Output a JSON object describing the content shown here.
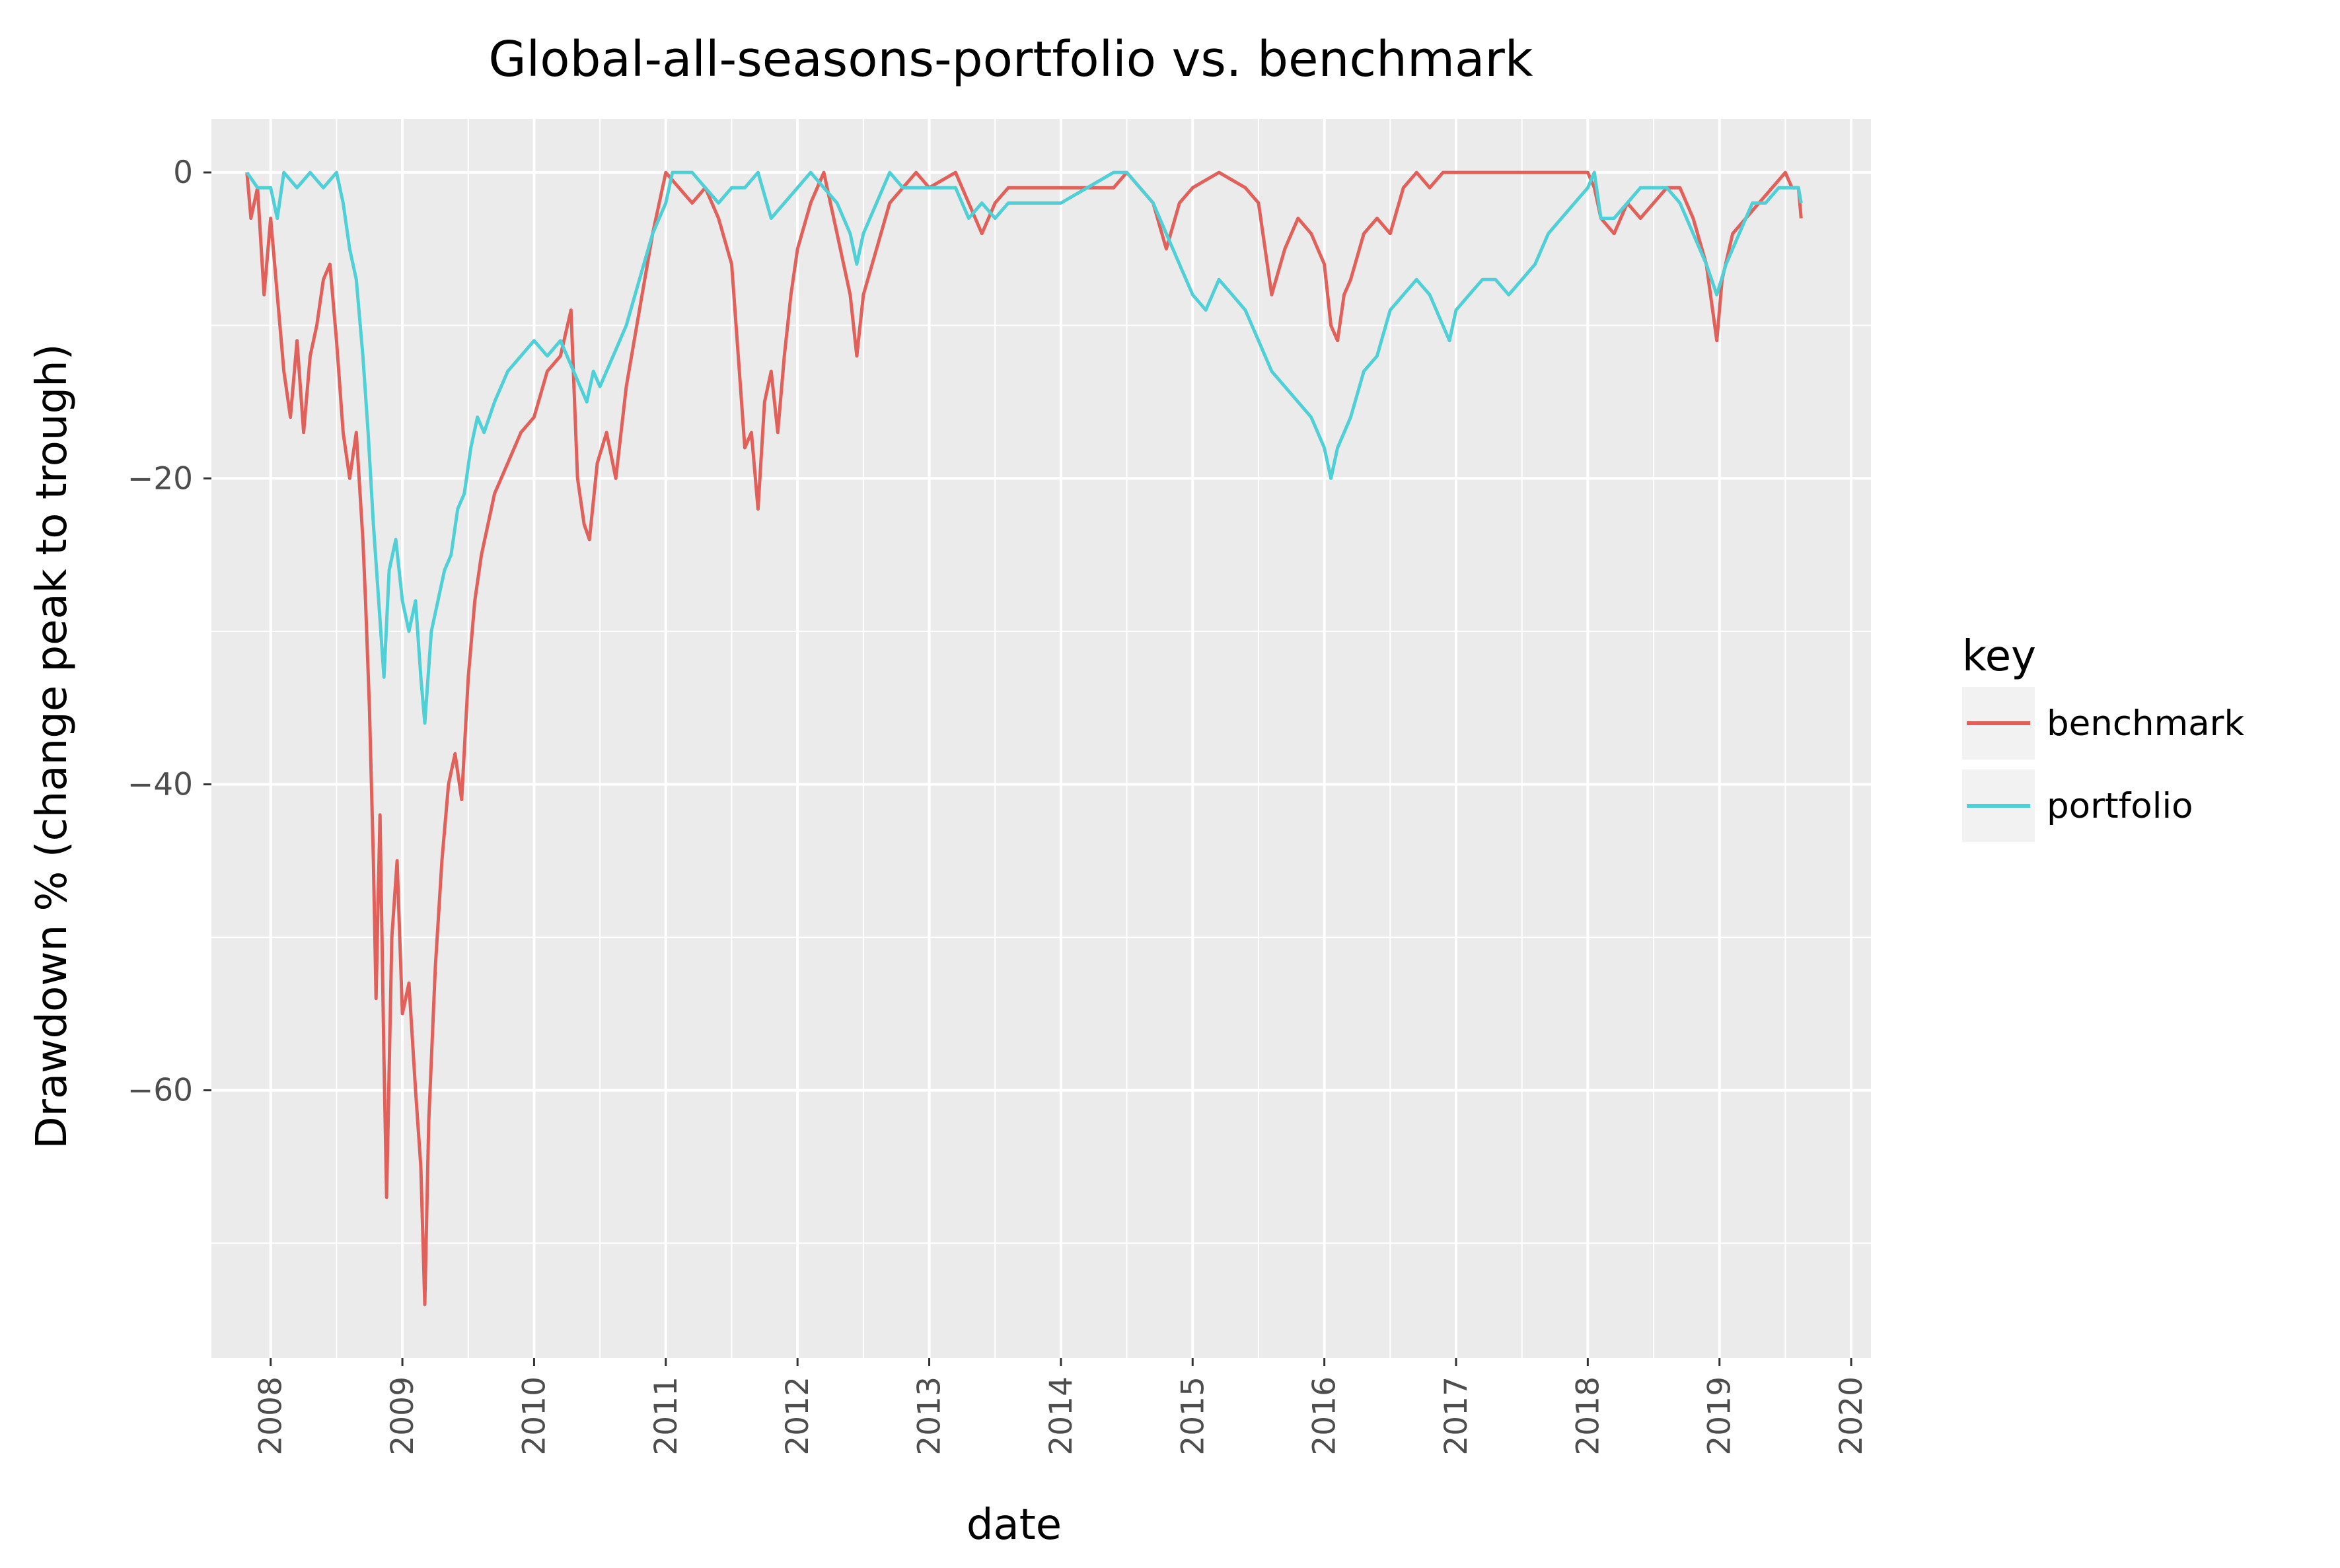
{
  "chart_data": {
    "type": "line",
    "title": "Global-all-seasons-portfolio vs. benchmark",
    "xlabel": "date",
    "ylabel": "Drawdown % (change peak to trough)",
    "x_ticks": [
      "2008",
      "2009",
      "2010",
      "2011",
      "2012",
      "2013",
      "2014",
      "2015",
      "2016",
      "2017",
      "2018",
      "2019",
      "2020"
    ],
    "y_ticks": [
      "0",
      "−20",
      "−40",
      "−60"
    ],
    "xlim": [
      2007.55,
      2020.15
    ],
    "ylim": [
      -77.5,
      3.5
    ],
    "grid": true,
    "legend": {
      "title": "key",
      "position": "right"
    },
    "series": [
      {
        "name": "benchmark",
        "color": "#E1615A",
        "points": [
          [
            2007.82,
            0
          ],
          [
            2007.85,
            -3
          ],
          [
            2007.9,
            -1
          ],
          [
            2007.95,
            -8
          ],
          [
            2008.0,
            -3
          ],
          [
            2008.05,
            -8
          ],
          [
            2008.1,
            -13
          ],
          [
            2008.15,
            -16
          ],
          [
            2008.2,
            -11
          ],
          [
            2008.25,
            -17
          ],
          [
            2008.3,
            -12
          ],
          [
            2008.35,
            -10
          ],
          [
            2008.4,
            -7
          ],
          [
            2008.45,
            -6
          ],
          [
            2008.5,
            -11
          ],
          [
            2008.55,
            -17
          ],
          [
            2008.6,
            -20
          ],
          [
            2008.65,
            -17
          ],
          [
            2008.7,
            -24
          ],
          [
            2008.72,
            -28
          ],
          [
            2008.75,
            -35
          ],
          [
            2008.78,
            -45
          ],
          [
            2008.8,
            -54
          ],
          [
            2008.83,
            -42
          ],
          [
            2008.86,
            -58
          ],
          [
            2008.88,
            -67
          ],
          [
            2008.92,
            -50
          ],
          [
            2008.96,
            -45
          ],
          [
            2009.0,
            -55
          ],
          [
            2009.05,
            -53
          ],
          [
            2009.1,
            -60
          ],
          [
            2009.14,
            -65
          ],
          [
            2009.17,
            -74
          ],
          [
            2009.2,
            -62
          ],
          [
            2009.25,
            -52
          ],
          [
            2009.3,
            -45
          ],
          [
            2009.35,
            -40
          ],
          [
            2009.4,
            -38
          ],
          [
            2009.45,
            -41
          ],
          [
            2009.5,
            -33
          ],
          [
            2009.55,
            -28
          ],
          [
            2009.6,
            -25
          ],
          [
            2009.7,
            -21
          ],
          [
            2009.8,
            -19
          ],
          [
            2009.9,
            -17
          ],
          [
            2010.0,
            -16
          ],
          [
            2010.1,
            -13
          ],
          [
            2010.2,
            -12
          ],
          [
            2010.28,
            -9
          ],
          [
            2010.33,
            -20
          ],
          [
            2010.38,
            -23
          ],
          [
            2010.42,
            -24
          ],
          [
            2010.48,
            -19
          ],
          [
            2010.55,
            -17
          ],
          [
            2010.62,
            -20
          ],
          [
            2010.7,
            -14
          ],
          [
            2010.8,
            -9
          ],
          [
            2010.9,
            -4
          ],
          [
            2011.0,
            0
          ],
          [
            2011.1,
            -1
          ],
          [
            2011.2,
            -2
          ],
          [
            2011.3,
            -1
          ],
          [
            2011.4,
            -3
          ],
          [
            2011.5,
            -6
          ],
          [
            2011.55,
            -12
          ],
          [
            2011.6,
            -18
          ],
          [
            2011.65,
            -17
          ],
          [
            2011.7,
            -22
          ],
          [
            2011.75,
            -15
          ],
          [
            2011.8,
            -13
          ],
          [
            2011.85,
            -17
          ],
          [
            2011.9,
            -12
          ],
          [
            2011.95,
            -8
          ],
          [
            2012.0,
            -5
          ],
          [
            2012.1,
            -2
          ],
          [
            2012.2,
            0
          ],
          [
            2012.3,
            -4
          ],
          [
            2012.4,
            -8
          ],
          [
            2012.45,
            -12
          ],
          [
            2012.5,
            -8
          ],
          [
            2012.6,
            -5
          ],
          [
            2012.7,
            -2
          ],
          [
            2012.8,
            -1
          ],
          [
            2012.9,
            0
          ],
          [
            2013.0,
            -1
          ],
          [
            2013.2,
            0
          ],
          [
            2013.3,
            -2
          ],
          [
            2013.4,
            -4
          ],
          [
            2013.5,
            -2
          ],
          [
            2013.6,
            -1
          ],
          [
            2013.8,
            -1
          ],
          [
            2014.0,
            -1
          ],
          [
            2014.2,
            -1
          ],
          [
            2014.4,
            -1
          ],
          [
            2014.5,
            0
          ],
          [
            2014.7,
            -2
          ],
          [
            2014.8,
            -5
          ],
          [
            2014.9,
            -2
          ],
          [
            2015.0,
            -1
          ],
          [
            2015.2,
            0
          ],
          [
            2015.4,
            -1
          ],
          [
            2015.5,
            -2
          ],
          [
            2015.6,
            -8
          ],
          [
            2015.7,
            -5
          ],
          [
            2015.8,
            -3
          ],
          [
            2015.9,
            -4
          ],
          [
            2016.0,
            -6
          ],
          [
            2016.05,
            -10
          ],
          [
            2016.1,
            -11
          ],
          [
            2016.15,
            -8
          ],
          [
            2016.2,
            -7
          ],
          [
            2016.3,
            -4
          ],
          [
            2016.4,
            -3
          ],
          [
            2016.5,
            -4
          ],
          [
            2016.6,
            -1
          ],
          [
            2016.7,
            0
          ],
          [
            2016.8,
            -1
          ],
          [
            2016.9,
            0
          ],
          [
            2017.0,
            0
          ],
          [
            2017.2,
            0
          ],
          [
            2017.4,
            0
          ],
          [
            2017.6,
            0
          ],
          [
            2017.8,
            0
          ],
          [
            2018.0,
            0
          ],
          [
            2018.05,
            -1
          ],
          [
            2018.1,
            -3
          ],
          [
            2018.2,
            -4
          ],
          [
            2018.3,
            -2
          ],
          [
            2018.4,
            -3
          ],
          [
            2018.5,
            -2
          ],
          [
            2018.6,
            -1
          ],
          [
            2018.7,
            -1
          ],
          [
            2018.8,
            -3
          ],
          [
            2018.9,
            -6
          ],
          [
            2018.98,
            -11
          ],
          [
            2019.02,
            -7
          ],
          [
            2019.1,
            -4
          ],
          [
            2019.2,
            -3
          ],
          [
            2019.3,
            -2
          ],
          [
            2019.4,
            -1
          ],
          [
            2019.5,
            0
          ],
          [
            2019.55,
            -1
          ],
          [
            2019.6,
            -1
          ],
          [
            2019.62,
            -3
          ]
        ]
      },
      {
        "name": "portfolio",
        "color": "#4FD0D6",
        "points": [
          [
            2007.82,
            0
          ],
          [
            2007.9,
            -1
          ],
          [
            2008.0,
            -1
          ],
          [
            2008.05,
            -3
          ],
          [
            2008.1,
            0
          ],
          [
            2008.2,
            -1
          ],
          [
            2008.3,
            0
          ],
          [
            2008.4,
            -1
          ],
          [
            2008.5,
            0
          ],
          [
            2008.55,
            -2
          ],
          [
            2008.6,
            -5
          ],
          [
            2008.65,
            -7
          ],
          [
            2008.7,
            -12
          ],
          [
            2008.74,
            -17
          ],
          [
            2008.78,
            -23
          ],
          [
            2008.82,
            -28
          ],
          [
            2008.86,
            -33
          ],
          [
            2008.9,
            -26
          ],
          [
            2008.95,
            -24
          ],
          [
            2009.0,
            -28
          ],
          [
            2009.05,
            -30
          ],
          [
            2009.1,
            -28
          ],
          [
            2009.14,
            -33
          ],
          [
            2009.17,
            -36
          ],
          [
            2009.22,
            -30
          ],
          [
            2009.27,
            -28
          ],
          [
            2009.32,
            -26
          ],
          [
            2009.37,
            -25
          ],
          [
            2009.42,
            -22
          ],
          [
            2009.47,
            -21
          ],
          [
            2009.52,
            -18
          ],
          [
            2009.57,
            -16
          ],
          [
            2009.62,
            -17
          ],
          [
            2009.7,
            -15
          ],
          [
            2009.8,
            -13
          ],
          [
            2009.9,
            -12
          ],
          [
            2010.0,
            -11
          ],
          [
            2010.1,
            -12
          ],
          [
            2010.2,
            -11
          ],
          [
            2010.3,
            -13
          ],
          [
            2010.35,
            -14
          ],
          [
            2010.4,
            -15
          ],
          [
            2010.45,
            -13
          ],
          [
            2010.5,
            -14
          ],
          [
            2010.6,
            -12
          ],
          [
            2010.7,
            -10
          ],
          [
            2010.8,
            -7
          ],
          [
            2010.9,
            -4
          ],
          [
            2011.0,
            -2
          ],
          [
            2011.05,
            0
          ],
          [
            2011.2,
            0
          ],
          [
            2011.3,
            -1
          ],
          [
            2011.4,
            -2
          ],
          [
            2011.5,
            -1
          ],
          [
            2011.6,
            -1
          ],
          [
            2011.7,
            0
          ],
          [
            2011.8,
            -3
          ],
          [
            2011.9,
            -2
          ],
          [
            2012.0,
            -1
          ],
          [
            2012.1,
            0
          ],
          [
            2012.2,
            -1
          ],
          [
            2012.3,
            -2
          ],
          [
            2012.4,
            -4
          ],
          [
            2012.45,
            -6
          ],
          [
            2012.5,
            -4
          ],
          [
            2012.6,
            -2
          ],
          [
            2012.7,
            0
          ],
          [
            2012.8,
            -1
          ],
          [
            2013.0,
            -1
          ],
          [
            2013.2,
            -1
          ],
          [
            2013.3,
            -3
          ],
          [
            2013.4,
            -2
          ],
          [
            2013.5,
            -3
          ],
          [
            2013.6,
            -2
          ],
          [
            2013.8,
            -2
          ],
          [
            2014.0,
            -2
          ],
          [
            2014.2,
            -1
          ],
          [
            2014.4,
            0
          ],
          [
            2014.5,
            0
          ],
          [
            2014.6,
            -1
          ],
          [
            2014.7,
            -2
          ],
          [
            2014.8,
            -4
          ],
          [
            2014.9,
            -6
          ],
          [
            2015.0,
            -8
          ],
          [
            2015.1,
            -9
          ],
          [
            2015.2,
            -7
          ],
          [
            2015.3,
            -8
          ],
          [
            2015.4,
            -9
          ],
          [
            2015.5,
            -11
          ],
          [
            2015.6,
            -13
          ],
          [
            2015.7,
            -14
          ],
          [
            2015.8,
            -15
          ],
          [
            2015.9,
            -16
          ],
          [
            2016.0,
            -18
          ],
          [
            2016.05,
            -20
          ],
          [
            2016.1,
            -18
          ],
          [
            2016.2,
            -16
          ],
          [
            2016.3,
            -13
          ],
          [
            2016.4,
            -12
          ],
          [
            2016.5,
            -9
          ],
          [
            2016.6,
            -8
          ],
          [
            2016.7,
            -7
          ],
          [
            2016.8,
            -8
          ],
          [
            2016.9,
            -10
          ],
          [
            2016.95,
            -11
          ],
          [
            2017.0,
            -9
          ],
          [
            2017.1,
            -8
          ],
          [
            2017.2,
            -7
          ],
          [
            2017.3,
            -7
          ],
          [
            2017.4,
            -8
          ],
          [
            2017.5,
            -7
          ],
          [
            2017.6,
            -6
          ],
          [
            2017.7,
            -4
          ],
          [
            2017.8,
            -3
          ],
          [
            2017.9,
            -2
          ],
          [
            2018.0,
            -1
          ],
          [
            2018.05,
            0
          ],
          [
            2018.1,
            -3
          ],
          [
            2018.2,
            -3
          ],
          [
            2018.3,
            -2
          ],
          [
            2018.4,
            -1
          ],
          [
            2018.5,
            -1
          ],
          [
            2018.6,
            -1
          ],
          [
            2018.7,
            -2
          ],
          [
            2018.8,
            -4
          ],
          [
            2018.9,
            -6
          ],
          [
            2018.98,
            -8
          ],
          [
            2019.05,
            -6
          ],
          [
            2019.15,
            -4
          ],
          [
            2019.25,
            -2
          ],
          [
            2019.35,
            -2
          ],
          [
            2019.45,
            -1
          ],
          [
            2019.55,
            -1
          ],
          [
            2019.6,
            -1
          ],
          [
            2019.62,
            -2
          ]
        ]
      }
    ]
  }
}
